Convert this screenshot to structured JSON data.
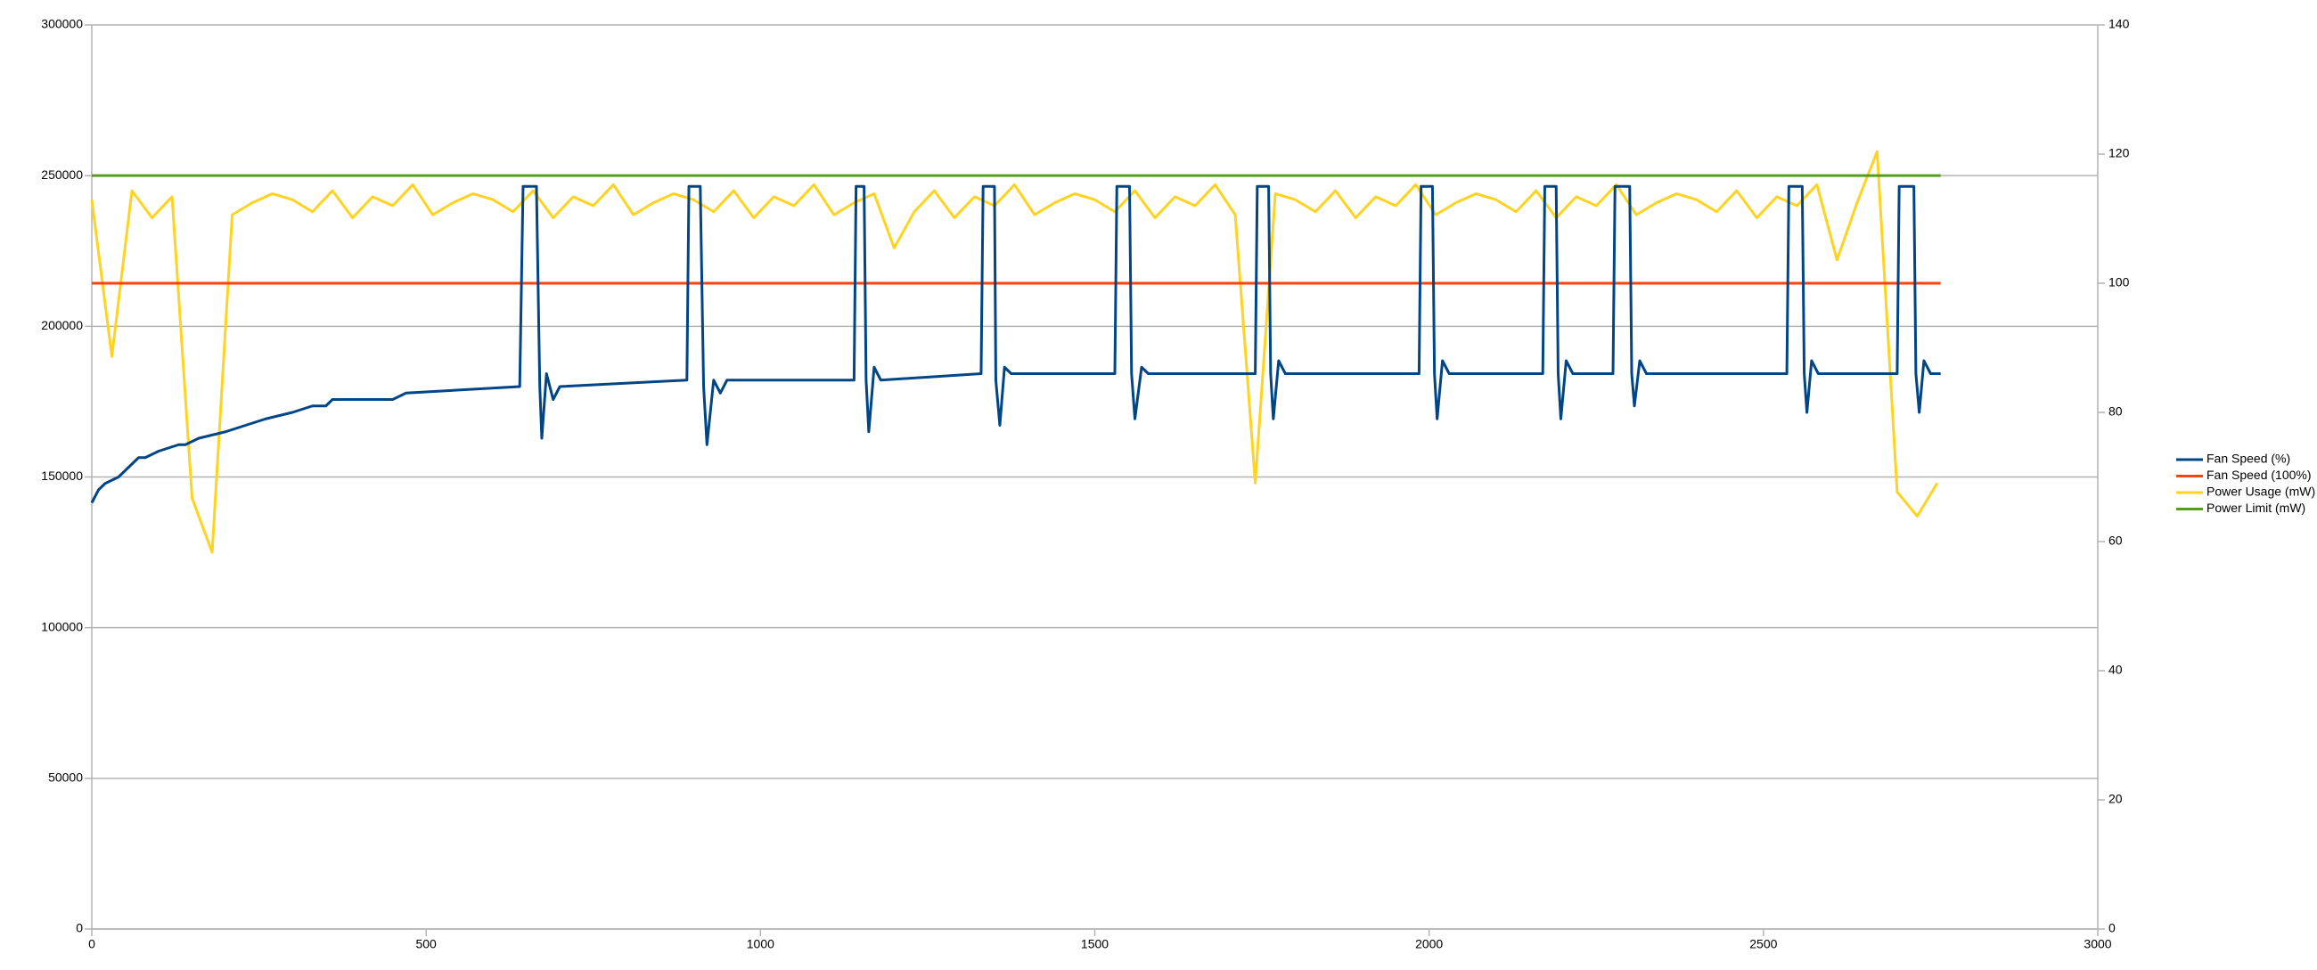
{
  "chart_data": {
    "type": "line",
    "xlim": [
      0,
      3000
    ],
    "xticks": [
      0,
      500,
      1000,
      1500,
      2000,
      2500,
      3000
    ],
    "ylim": [
      0,
      300000
    ],
    "yticks": [
      0,
      50000,
      100000,
      150000,
      200000,
      250000,
      300000
    ],
    "y2lim": [
      0,
      140
    ],
    "y2ticks": [
      0,
      20,
      40,
      60,
      80,
      100,
      120,
      140
    ],
    "grid": true,
    "legend": "right",
    "series": [
      {
        "name": "Fan Speed (%)",
        "color": "#004586",
        "axis": "y2",
        "x": [
          0,
          5,
          10,
          20,
          40,
          50,
          60,
          70,
          80,
          100,
          130,
          140,
          160,
          200,
          230,
          260,
          300,
          330,
          350,
          360,
          450,
          470,
          640,
          645,
          665,
          670,
          673,
          680,
          690,
          700,
          890,
          893,
          910,
          915,
          920,
          930,
          940,
          950,
          1140,
          1143,
          1155,
          1158,
          1162,
          1170,
          1180,
          1330,
          1333,
          1350,
          1352,
          1358,
          1365,
          1375,
          1530,
          1533,
          1552,
          1555,
          1560,
          1570,
          1580,
          1740,
          1743,
          1760,
          1763,
          1767,
          1775,
          1785,
          1985,
          1988,
          2005,
          2008,
          2012,
          2020,
          2030,
          2170,
          2173,
          2190,
          2193,
          2197,
          2205,
          2215,
          2275,
          2278,
          2300,
          2303,
          2307,
          2315,
          2325,
          2535,
          2538,
          2558,
          2561,
          2565,
          2572,
          2582,
          2700,
          2703,
          2725,
          2728,
          2733,
          2740,
          2750,
          2765
        ],
        "values": [
          66,
          67,
          68,
          69,
          70,
          71,
          72,
          73,
          73,
          74,
          75,
          75,
          76,
          77,
          78,
          79,
          80,
          81,
          81,
          82,
          82,
          83,
          84,
          115,
          115,
          84,
          76,
          86,
          82,
          84,
          85,
          115,
          115,
          84,
          75,
          85,
          83,
          85,
          85,
          115,
          115,
          85,
          77,
          87,
          85,
          86,
          115,
          115,
          85,
          78,
          87,
          86,
          86,
          115,
          115,
          86,
          79,
          87,
          86,
          86,
          115,
          115,
          86,
          79,
          88,
          86,
          86,
          115,
          115,
          86,
          79,
          88,
          86,
          86,
          115,
          115,
          86,
          79,
          88,
          86,
          86,
          115,
          115,
          86,
          81,
          88,
          86,
          86,
          115,
          115,
          86,
          80,
          88,
          86,
          86,
          115,
          115,
          86,
          80,
          88,
          86,
          86
        ]
      },
      {
        "name": "Fan Speed (100%)",
        "color": "#ff420e",
        "axis": "y2",
        "x": [
          0,
          2765
        ],
        "values": [
          100,
          100
        ]
      },
      {
        "name": "Power Usage (mW)",
        "color": "#ffd320",
        "axis": "y",
        "x": [
          0,
          30,
          60,
          90,
          120,
          150,
          180,
          210,
          240,
          270,
          300,
          330,
          360,
          390,
          420,
          450,
          480,
          510,
          540,
          570,
          600,
          630,
          660,
          690,
          720,
          750,
          780,
          810,
          840,
          870,
          900,
          930,
          960,
          990,
          1020,
          1050,
          1080,
          1110,
          1140,
          1170,
          1200,
          1230,
          1260,
          1290,
          1320,
          1350,
          1380,
          1410,
          1440,
          1470,
          1500,
          1530,
          1560,
          1590,
          1620,
          1650,
          1680,
          1710,
          1740,
          1770,
          1800,
          1830,
          1860,
          1890,
          1920,
          1950,
          1980,
          2010,
          2040,
          2070,
          2100,
          2130,
          2160,
          2190,
          2220,
          2250,
          2280,
          2310,
          2340,
          2370,
          2400,
          2430,
          2460,
          2490,
          2520,
          2550,
          2580,
          2610,
          2640,
          2670,
          2700,
          2730,
          2760
        ],
        "values": [
          242000,
          190000,
          245000,
          236000,
          243000,
          143000,
          125000,
          237000,
          241000,
          244000,
          242000,
          238000,
          245000,
          236000,
          243000,
          240000,
          247000,
          237000,
          241000,
          244000,
          242000,
          238000,
          245000,
          236000,
          243000,
          240000,
          247000,
          237000,
          241000,
          244000,
          242000,
          238000,
          245000,
          236000,
          243000,
          240000,
          247000,
          237000,
          241000,
          244000,
          226000,
          238000,
          245000,
          236000,
          243000,
          240000,
          247000,
          237000,
          241000,
          244000,
          242000,
          238000,
          245000,
          236000,
          243000,
          240000,
          247000,
          237000,
          148000,
          244000,
          242000,
          238000,
          245000,
          236000,
          243000,
          240000,
          247000,
          237000,
          241000,
          244000,
          242000,
          238000,
          245000,
          236000,
          243000,
          240000,
          247000,
          237000,
          241000,
          244000,
          242000,
          238000,
          245000,
          236000,
          243000,
          240000,
          247000,
          222000,
          241000,
          258000,
          145000,
          137000,
          148000
        ]
      },
      {
        "name": "Power Limit (mW)",
        "color": "#579d1c",
        "axis": "y",
        "x": [
          0,
          2765
        ],
        "values": [
          250000,
          250000
        ]
      }
    ]
  }
}
